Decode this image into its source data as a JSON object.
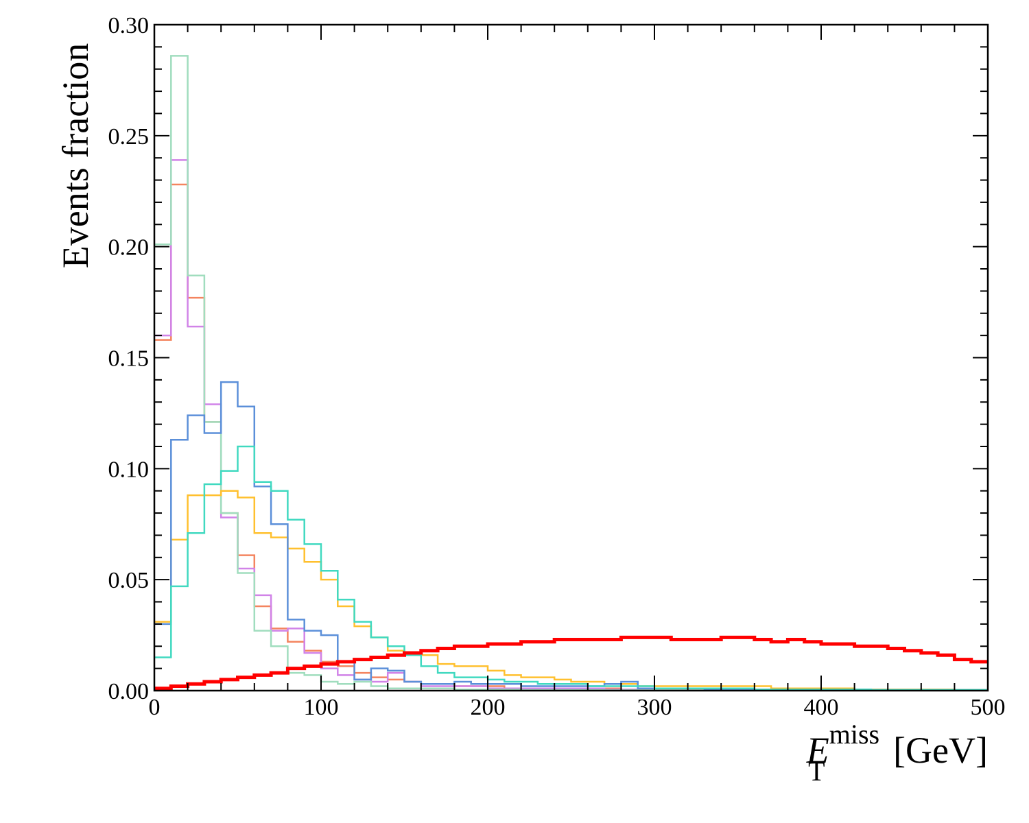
{
  "chart_data": {
    "type": "histogram-step",
    "title": "",
    "xlabel": {
      "symbol": "E",
      "subscript": "T",
      "superscript": "miss",
      "unit": "[GeV]"
    },
    "ylabel": "Events fraction",
    "xlim": [
      0,
      500
    ],
    "ylim": [
      0,
      0.3
    ],
    "x_ticks": [
      0,
      100,
      200,
      300,
      400,
      500
    ],
    "x_tick_labels": [
      "0",
      "100",
      "200",
      "300",
      "400",
      "500"
    ],
    "y_ticks": [
      0,
      0.05,
      0.1,
      0.15,
      0.2,
      0.25,
      0.3
    ],
    "y_tick_labels": [
      "0.00",
      "0.05",
      "0.10",
      "0.15",
      "0.20",
      "0.25",
      "0.30"
    ],
    "grid": false,
    "bin_edges": [
      0,
      10,
      20,
      30,
      40,
      50,
      60,
      70,
      80,
      90,
      100,
      110,
      120,
      130,
      140,
      150,
      160,
      170,
      180,
      190,
      200,
      210,
      220,
      230,
      240,
      250,
      260,
      270,
      280,
      290,
      300,
      310,
      320,
      330,
      340,
      350,
      360,
      370,
      380,
      390,
      400,
      410,
      420,
      430,
      440,
      450,
      460,
      470,
      480,
      490,
      500
    ],
    "series": [
      {
        "color": "#F4845F",
        "width": 2.5,
        "values": [
          0.158,
          0.228,
          0.177,
          0.121,
          0.08,
          0.061,
          0.038,
          0.028,
          0.022,
          0.018,
          0.013,
          0.011,
          0.008,
          0.006,
          0.005,
          0.004,
          0.003,
          0.003,
          0.002,
          0.002,
          0.002,
          0.001,
          0.001,
          0.001,
          0.001,
          0.001,
          0.001,
          0.001,
          0.0005,
          0.0005,
          0.0005,
          0.0005,
          0.0005,
          0.0005,
          0.0005,
          0.0005,
          0.0003,
          0.0003,
          0.0003,
          0.0003,
          0.0003,
          0.0003,
          0.0002,
          0.0002,
          0.0002,
          0.0002,
          0.0002,
          0.0002,
          0.0002,
          0.0002
        ]
      },
      {
        "color": "#D183E8",
        "width": 2.5,
        "values": [
          0.16,
          0.239,
          0.164,
          0.129,
          0.078,
          0.055,
          0.043,
          0.027,
          0.028,
          0.017,
          0.01,
          0.007,
          0.005,
          0.004,
          0.008,
          0.004,
          0.002,
          0.002,
          0.002,
          0.002,
          0.001,
          0.001,
          0.001,
          0.001,
          0.001,
          0.001,
          0.001,
          0.0005,
          0.0005,
          0.0005,
          0.0005,
          0.0005,
          0.0005,
          0.0005,
          0.0005,
          0.0003,
          0.0003,
          0.0003,
          0.0003,
          0.0003,
          0.0003,
          0.0002,
          0.0002,
          0.0002,
          0.0002,
          0.0002,
          0.0002,
          0.0002,
          0.0002,
          0.0002
        ]
      },
      {
        "color": "#A0DDBE",
        "width": 2.5,
        "values": [
          0.201,
          0.286,
          0.187,
          0.121,
          0.08,
          0.053,
          0.027,
          0.02,
          0.008,
          0.007,
          0.004,
          0.003,
          0.004,
          0.002,
          0.001,
          0.001,
          0.001,
          0.001,
          0.0005,
          0.0005,
          0.0005,
          0.0005,
          0.0003,
          0.0003,
          0.0003,
          0.0003,
          0.0003,
          0.0002,
          0.0002,
          0.0002,
          0.0002,
          0.0002,
          0.0002,
          0.0001,
          0.0001,
          0.0001,
          0.0001,
          0.0001,
          0.0001,
          0.0001,
          0.0001,
          0.0001,
          0.0001,
          0.0001,
          0.0001,
          0.0001,
          0.0001,
          0.0001,
          0.0001,
          0.0001
        ]
      },
      {
        "color": "#FFC02E",
        "width": 2.5,
        "values": [
          0.031,
          0.068,
          0.088,
          0.088,
          0.09,
          0.087,
          0.071,
          0.069,
          0.064,
          0.058,
          0.05,
          0.038,
          0.029,
          0.024,
          0.018,
          0.017,
          0.016,
          0.012,
          0.011,
          0.011,
          0.009,
          0.007,
          0.006,
          0.006,
          0.005,
          0.004,
          0.004,
          0.003,
          0.003,
          0.002,
          0.002,
          0.002,
          0.002,
          0.002,
          0.002,
          0.002,
          0.002,
          0.001,
          0.001,
          0.001,
          0.001,
          0.001,
          0.0005,
          0.0005,
          0.0005,
          0.0005,
          0.0005,
          0.0005,
          0.0003,
          0.0003
        ]
      },
      {
        "color": "#5B8FD9",
        "width": 2.5,
        "values": [
          0.03,
          0.113,
          0.124,
          0.116,
          0.139,
          0.128,
          0.092,
          0.075,
          0.032,
          0.027,
          0.025,
          0.013,
          0.005,
          0.01,
          0.009,
          0.004,
          0.003,
          0.003,
          0.004,
          0.003,
          0.003,
          0.003,
          0.002,
          0.002,
          0.002,
          0.002,
          0.002,
          0.003,
          0.004,
          0.001,
          0.001,
          0.001,
          0.001,
          0.0005,
          0.0005,
          0.0005,
          0.0005,
          0.0005,
          0.0005,
          0.0005,
          0.0005,
          0.0005,
          0.0005,
          0.0003,
          0.0003,
          0.0003,
          0.0003,
          0.0003,
          0.0003,
          0.0003
        ]
      },
      {
        "color": "#40D9C0",
        "width": 2.5,
        "values": [
          0.015,
          0.047,
          0.071,
          0.093,
          0.099,
          0.11,
          0.094,
          0.09,
          0.077,
          0.066,
          0.054,
          0.041,
          0.031,
          0.024,
          0.02,
          0.016,
          0.011,
          0.008,
          0.006,
          0.006,
          0.005,
          0.004,
          0.004,
          0.003,
          0.003,
          0.003,
          0.002,
          0.002,
          0.002,
          0.002,
          0.001,
          0.001,
          0.001,
          0.001,
          0.001,
          0.001,
          0.0005,
          0.0005,
          0.0005,
          0.0005,
          0.0005,
          0.0005,
          0.0005,
          0.0003,
          0.0003,
          0.0003,
          0.0003,
          0.0003,
          0.0003,
          0.0003
        ]
      },
      {
        "color": "#FF0000",
        "width": 5,
        "values": [
          0.001,
          0.002,
          0.003,
          0.004,
          0.005,
          0.006,
          0.007,
          0.008,
          0.01,
          0.011,
          0.012,
          0.013,
          0.014,
          0.015,
          0.016,
          0.017,
          0.018,
          0.019,
          0.02,
          0.02,
          0.021,
          0.021,
          0.022,
          0.022,
          0.023,
          0.023,
          0.023,
          0.023,
          0.024,
          0.024,
          0.024,
          0.023,
          0.023,
          0.023,
          0.024,
          0.024,
          0.023,
          0.022,
          0.023,
          0.022,
          0.021,
          0.021,
          0.02,
          0.02,
          0.019,
          0.018,
          0.017,
          0.016,
          0.014,
          0.013
        ]
      }
    ]
  }
}
